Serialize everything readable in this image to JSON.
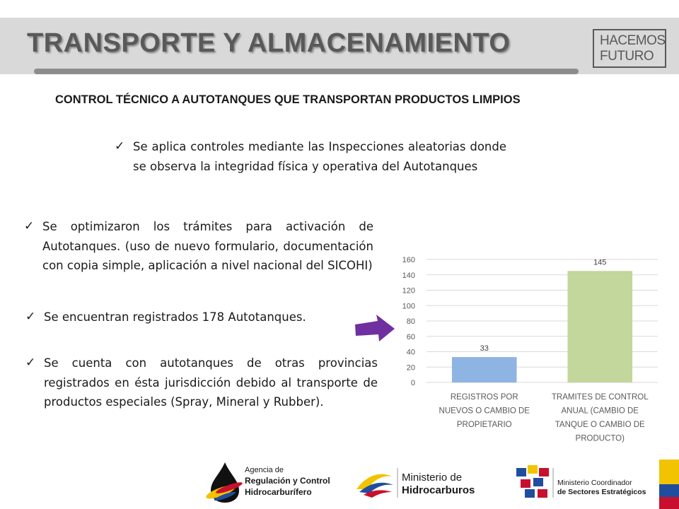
{
  "header": {
    "title": "TRANSPORTE Y ALMACENAMIENTO",
    "logo_line1": "HACEMOS",
    "logo_line2": "FUTURO"
  },
  "section": {
    "heading": "CONTROL TÉCNICO A AUTOTANQUES QUE TRANSPORTAN PRODUCTOS LIMPIOS"
  },
  "bullets": [
    {
      "check": "✓",
      "text": "Se aplica controles mediante las  Inspecciones aleatorias  donde se observa  la integridad física y operativa del Autotanques"
    },
    {
      "check": "✓",
      "text": "Se optimizaron los trámites  para activación de Autotanques.   (uso de nuevo formulario, documentación con copia simple, aplicación a nivel nacional  del SICOHI)"
    },
    {
      "check": "✓",
      "text": "Se encuentran registrados 178 Autotanques."
    },
    {
      "check": "✓",
      "text": "Se cuenta con autotanques de otras provincias registrados en ésta jurisdicción debido al transporte de productos especiales (Spray, Mineral y Rubber)."
    }
  ],
  "chart_data": {
    "type": "bar",
    "categories": [
      [
        "REGISTROS POR",
        "NUEVOS O CAMBIO DE",
        "PROPIETARIO"
      ],
      [
        "TRAMITES DE CONTROL",
        "ANUAL (CAMBIO DE",
        "TANQUE O CAMBIO DE",
        "PRODUCTO)"
      ]
    ],
    "values": [
      33,
      145
    ],
    "data_labels": [
      "33",
      "145"
    ],
    "bar_colors": [
      "#8eb4e3",
      "#c3d69b"
    ],
    "yticks": [
      0,
      20,
      40,
      60,
      80,
      100,
      120,
      140,
      160
    ],
    "ylim": [
      0,
      160
    ],
    "grid": true,
    "title": "",
    "xlabel": "",
    "ylabel": ""
  },
  "footer": {
    "arch_line1": "Agencia de",
    "arch_line2": "Regulación y Control",
    "arch_line3": "Hidrocarburífero",
    "min_line1": "Ministerio de",
    "min_line2": "Hidrocarburos",
    "coord_line1": "Ministerio Coordinador",
    "coord_line2": "de Sectores Estratégicos"
  },
  "colors": {
    "arrow": "#7030a0",
    "header_band": "#d9d9d9",
    "title": "#595959"
  }
}
